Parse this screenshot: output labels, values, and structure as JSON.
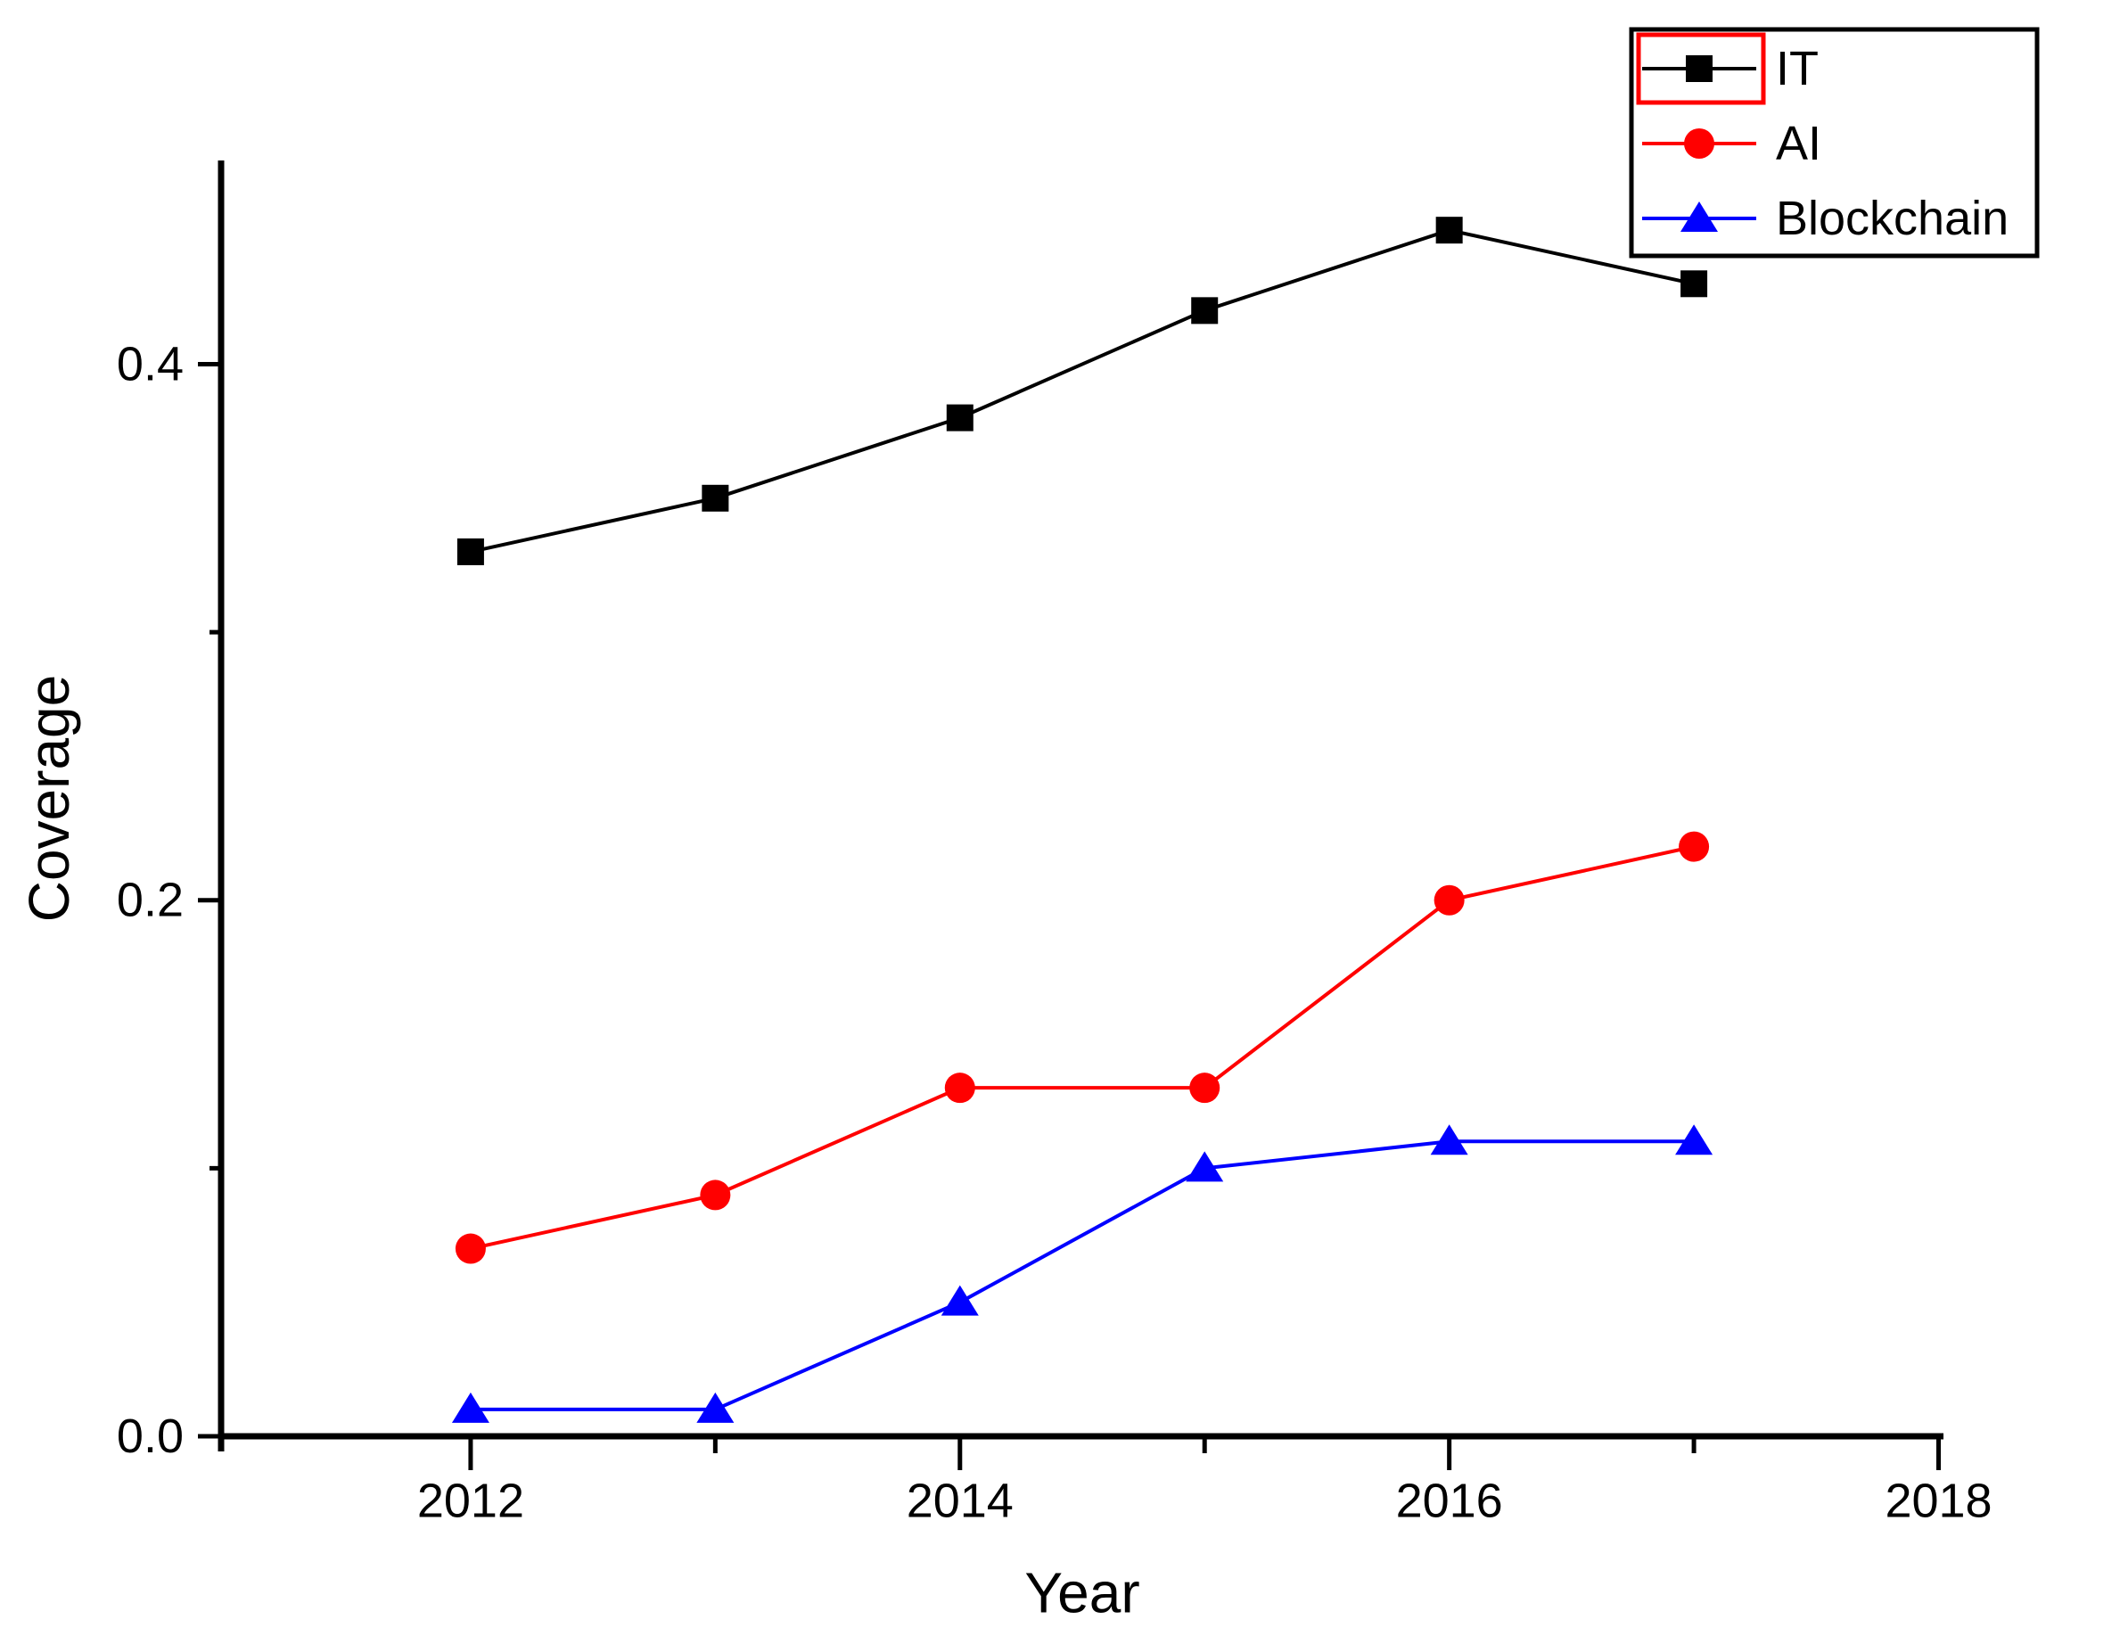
{
  "chart_data": {
    "type": "line",
    "title": "",
    "xlabel": "Year",
    "ylabel": "Coverage",
    "x": [
      2012,
      2013,
      2014,
      2015,
      2016,
      2017
    ],
    "series": [
      {
        "name": "IT",
        "color": "#000000",
        "marker": "square",
        "values": [
          0.33,
          0.35,
          0.38,
          0.42,
          0.45,
          0.43
        ]
      },
      {
        "name": "AI",
        "color": "#FF0000",
        "marker": "circle",
        "values": [
          0.07,
          0.09,
          0.13,
          0.13,
          0.2,
          0.22
        ]
      },
      {
        "name": "Blockchain",
        "color": "#0000FF",
        "marker": "triangle",
        "values": [
          0.01,
          0.01,
          0.05,
          0.1,
          0.11,
          0.11
        ]
      }
    ],
    "axes": {
      "xlim": [
        2010.98,
        2018.02
      ],
      "ylim": [
        0,
        0.476
      ],
      "x_major_ticks": [
        2012,
        2014,
        2016,
        2018
      ],
      "x_tick_labels": [
        "2012",
        "2014",
        "2016",
        "2018"
      ],
      "x_minor_ticks": [
        2013,
        2015,
        2017
      ],
      "y_major_ticks": [
        0.0,
        0.2,
        0.4
      ],
      "y_tick_labels": [
        "0.0",
        "0.2",
        "0.4"
      ],
      "y_minor_ticks": [
        0.1,
        0.3
      ],
      "grid": false
    },
    "legend": {
      "position": "top-right",
      "entries": [
        "IT",
        "AI",
        "Blockchain"
      ],
      "highlight": {
        "entry": "IT",
        "box_color": "#FF0000"
      }
    }
  }
}
